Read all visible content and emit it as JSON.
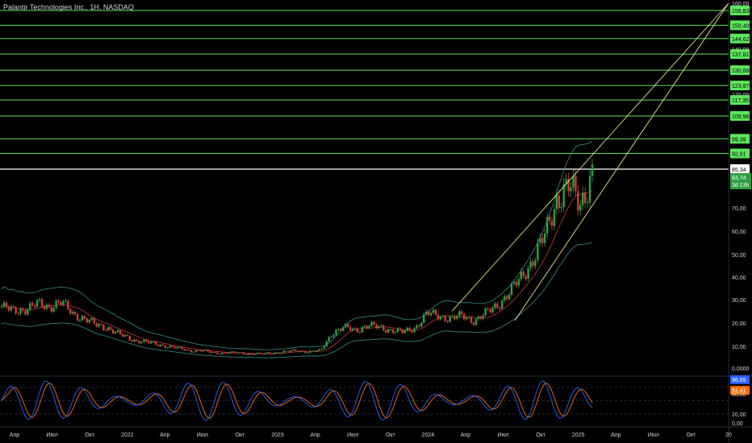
{
  "header": {
    "title": "Palantir Technologies Inc., 1H, NASDAQ"
  },
  "colors": {
    "background": "#000000",
    "level_line": "#5ce65c",
    "level_label_bg": "#5ce65c",
    "trend_line": "#e9e98a",
    "bollinger": "#2f7f78",
    "ma": "#b0333a",
    "candle_up": "#2ea043",
    "candle_down": "#d63a3a",
    "stoch_k": "#2962ff",
    "stoch_d": "#ff6d00",
    "axis_text": "#d1d4dc",
    "current_line": "#ffffff"
  },
  "chart_data": {
    "type": "candlestick",
    "title": "Palantir Technologies Inc., 1H, NASDAQ",
    "x_tick_labels": [
      "Апр",
      "Июл",
      "Окт",
      "2022",
      "Апр",
      "Июл",
      "Окт",
      "2023",
      "Апр",
      "Июл",
      "Окт",
      "2024",
      "Апр",
      "Июл",
      "Окт",
      "2025",
      "Апр",
      "Июл",
      "Окт",
      "20"
    ],
    "y_tick_labels": [
      "160,00",
      "140,00",
      "120,00",
      "70,00",
      "60,00",
      "50,00",
      "40,00",
      "30,00",
      "20,00",
      "10,00",
      "0,0000"
    ],
    "y_ticks_values": [
      160,
      140,
      120,
      70,
      60,
      50,
      40,
      30,
      20,
      10,
      0
    ],
    "horizontal_levels": [
      156.83,
      150.4,
      144.62,
      137.81,
      130.66,
      123.87,
      117.35,
      109.96,
      99.39,
      92.61
    ],
    "level_labels": [
      "156,83",
      "150,40",
      "144,62",
      "137,81",
      "130,66",
      "123,87",
      "117,35",
      "109,96",
      "99,39",
      "92,61"
    ],
    "current_level": {
      "value": 85.34,
      "label": "85,34"
    },
    "last_price": {
      "value": 83.74,
      "label": "83,74",
      "countdown": "3d 13h"
    },
    "monthly_closes": [
      27,
      25,
      26,
      28,
      27,
      29,
      24,
      22,
      19,
      18,
      15,
      13,
      12,
      11,
      10,
      9,
      8,
      8,
      7,
      7,
      7,
      6.5,
      6.5,
      7,
      7.5,
      8,
      7.5,
      8,
      16,
      18,
      17,
      19,
      18,
      17,
      16,
      18,
      24,
      23,
      22,
      23,
      21,
      24,
      28,
      33,
      40,
      48,
      58,
      74,
      78,
      72,
      83.74
    ],
    "rsi_tick_labels": [
      "96,65",
      "92,41",
      "80,00",
      "20,00",
      "0,00"
    ],
    "stoch_k_last": 96.65,
    "stoch_d_last": 92.41
  }
}
